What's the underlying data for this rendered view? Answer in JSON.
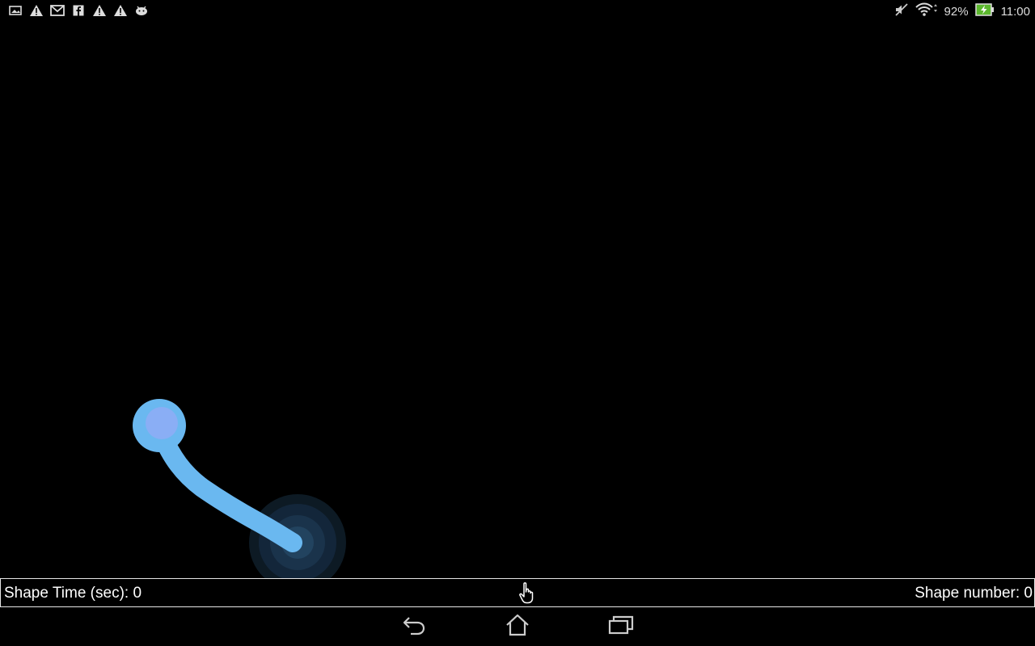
{
  "status_bar": {
    "notifications": [
      "image-icon",
      "warning-icon",
      "gmail-icon",
      "facebook-icon",
      "warning-icon",
      "warning-icon",
      "android-icon"
    ],
    "battery": "92%",
    "time": "11:00"
  },
  "info_bar": {
    "shape_time_label": "Shape Time (sec): 0",
    "shape_number_label": "Shape number: 0"
  },
  "colors": {
    "stroke": "#6ab8f0",
    "start_dot_inner": "#8aaef5",
    "background": "#000000"
  },
  "nav_bar": {
    "buttons": [
      "back-icon",
      "home-icon",
      "recent-apps-icon"
    ]
  }
}
